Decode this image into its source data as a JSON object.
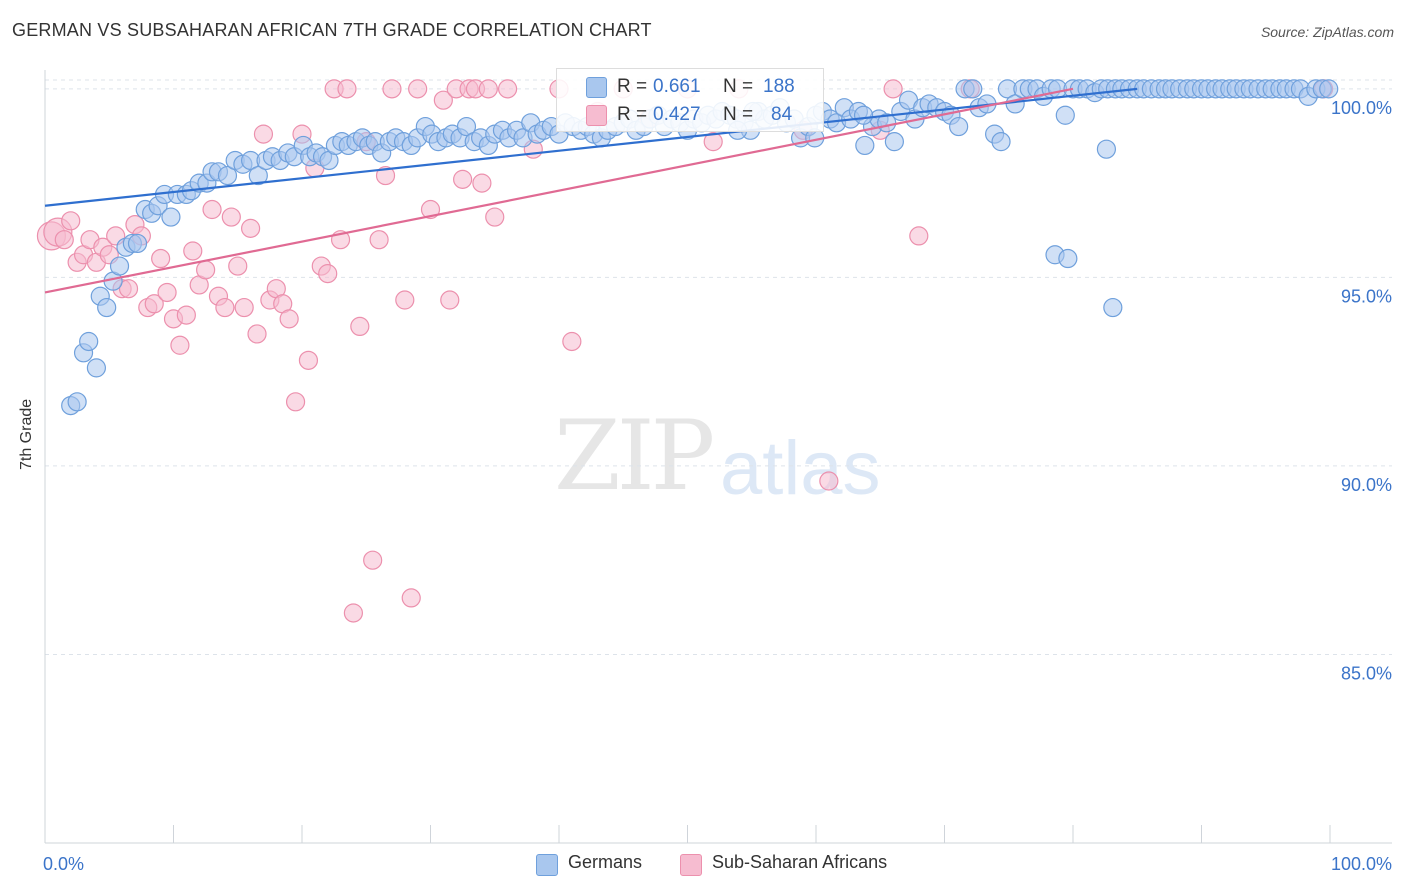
{
  "title": "GERMAN VS SUBSAHARAN AFRICAN 7TH GRADE CORRELATION CHART",
  "source": "Source: ZipAtlas.com",
  "watermark": {
    "zip": "ZIP",
    "atlas": "atlas"
  },
  "legend": {
    "r_label": "R =",
    "n_label": "N =",
    "german_r": "0.661",
    "german_n": "188",
    "african_r": "0.427",
    "african_n": "84"
  },
  "colors": {
    "german_fill": "#a9c7ee",
    "german_stroke": "#6fa0dc",
    "german_line": "#2f6fcf",
    "african_fill": "#f6bcd0",
    "african_stroke": "#ec90ad",
    "african_line": "#e06a93",
    "tick_text": "#3b74c9",
    "grid": "#dde3ea"
  },
  "chart_data": {
    "type": "scatter",
    "title": "GERMAN VS SUBSAHARAN AFRICAN 7TH GRADE CORRELATION CHART",
    "xlabel": "",
    "ylabel": "7th Grade",
    "xlim": [
      0,
      100
    ],
    "ylim": [
      80,
      100.5
    ],
    "x_ticks": [
      "0.0%",
      "100.0%"
    ],
    "y_ticks": [
      {
        "value": 85,
        "label": "85.0%"
      },
      {
        "value": 90,
        "label": "90.0%"
      },
      {
        "value": 95,
        "label": "95.0%"
      },
      {
        "value": 100,
        "label": "100.0%"
      }
    ],
    "grid": true,
    "legend_position": "bottom",
    "series": [
      {
        "name": "Germans",
        "r": 0.661,
        "n": 188,
        "trend": {
          "x": [
            0,
            85
          ],
          "y": [
            96.9,
            100.0
          ]
        },
        "points": [
          [
            2,
            91.6
          ],
          [
            2.5,
            91.7
          ],
          [
            3,
            93
          ],
          [
            3.4,
            93.3
          ],
          [
            4,
            92.6
          ],
          [
            4.3,
            94.5
          ],
          [
            4.8,
            94.2
          ],
          [
            5.3,
            94.9
          ],
          [
            5.8,
            95.3
          ],
          [
            6.3,
            95.8
          ],
          [
            6.8,
            95.9
          ],
          [
            7.2,
            95.9
          ],
          [
            7.8,
            96.8
          ],
          [
            8.3,
            96.7
          ],
          [
            8.8,
            96.9
          ],
          [
            9.3,
            97.2
          ],
          [
            9.8,
            96.6
          ],
          [
            10.3,
            97.2
          ],
          [
            11,
            97.2
          ],
          [
            11.4,
            97.3
          ],
          [
            12,
            97.5
          ],
          [
            12.6,
            97.5
          ],
          [
            13,
            97.8
          ],
          [
            13.5,
            97.8
          ],
          [
            14.2,
            97.7
          ],
          [
            14.8,
            98.1
          ],
          [
            15.4,
            98
          ],
          [
            16,
            98.1
          ],
          [
            16.6,
            97.7
          ],
          [
            17.2,
            98.1
          ],
          [
            17.7,
            98.2
          ],
          [
            18.3,
            98.1
          ],
          [
            18.9,
            98.3
          ],
          [
            19.4,
            98.2
          ],
          [
            20.1,
            98.5
          ],
          [
            20.6,
            98.2
          ],
          [
            21.1,
            98.3
          ],
          [
            21.6,
            98.2
          ],
          [
            22.1,
            98.1
          ],
          [
            22.6,
            98.5
          ],
          [
            23.1,
            98.6
          ],
          [
            23.6,
            98.5
          ],
          [
            24.2,
            98.6
          ],
          [
            24.7,
            98.7
          ],
          [
            25.2,
            98.5
          ],
          [
            25.7,
            98.6
          ],
          [
            26.2,
            98.3
          ],
          [
            26.8,
            98.6
          ],
          [
            27.3,
            98.7
          ],
          [
            27.9,
            98.6
          ],
          [
            28.5,
            98.5
          ],
          [
            29,
            98.7
          ],
          [
            29.6,
            99
          ],
          [
            30.1,
            98.8
          ],
          [
            30.6,
            98.6
          ],
          [
            31.2,
            98.7
          ],
          [
            31.7,
            98.8
          ],
          [
            32.3,
            98.7
          ],
          [
            32.8,
            99
          ],
          [
            33.4,
            98.6
          ],
          [
            33.9,
            98.7
          ],
          [
            34.5,
            98.5
          ],
          [
            35,
            98.8
          ],
          [
            35.6,
            98.9
          ],
          [
            36.1,
            98.7
          ],
          [
            36.7,
            98.9
          ],
          [
            37.2,
            98.7
          ],
          [
            37.8,
            99.1
          ],
          [
            38.3,
            98.8
          ],
          [
            38.8,
            98.9
          ],
          [
            39.4,
            99
          ],
          [
            40,
            98.8
          ],
          [
            40.5,
            99.1
          ],
          [
            41.1,
            99
          ],
          [
            41.7,
            98.9
          ],
          [
            42.2,
            99
          ],
          [
            42.7,
            98.8
          ],
          [
            43.3,
            98.7
          ],
          [
            43.8,
            98.9
          ],
          [
            44.4,
            99
          ],
          [
            45,
            99.1
          ],
          [
            45.5,
            99.2
          ],
          [
            46,
            98.9
          ],
          [
            46.6,
            99
          ],
          [
            47.1,
            99.2
          ],
          [
            47.7,
            99.3
          ],
          [
            48.2,
            99
          ],
          [
            48.8,
            99.2
          ],
          [
            49.4,
            99.1
          ],
          [
            50,
            98.9
          ],
          [
            50.5,
            99.2
          ],
          [
            51.1,
            99.1
          ],
          [
            51.6,
            99.3
          ],
          [
            52.2,
            99.2
          ],
          [
            52.7,
            99.4
          ],
          [
            53.3,
            99.3
          ],
          [
            53.8,
            99.2
          ],
          [
            54.4,
            99.1
          ],
          [
            54.9,
            98.9
          ],
          [
            55.5,
            99.4
          ],
          [
            56,
            99.2
          ],
          [
            56.6,
            99.3
          ],
          [
            57.2,
            99.5
          ],
          [
            57.7,
            99.1
          ],
          [
            58.3,
            99.2
          ],
          [
            58.8,
            98.7
          ],
          [
            59.4,
            99
          ],
          [
            60,
            99.3
          ],
          [
            60.5,
            99.4
          ],
          [
            61.1,
            99.2
          ],
          [
            61.6,
            99.1
          ],
          [
            62.2,
            99.5
          ],
          [
            62.7,
            99.2
          ],
          [
            63.3,
            99.4
          ],
          [
            63.8,
            98.5
          ],
          [
            64.4,
            99
          ],
          [
            64.9,
            99.2
          ],
          [
            65.5,
            99.1
          ],
          [
            66.1,
            98.6
          ],
          [
            66.6,
            99.4
          ],
          [
            67.2,
            99.7
          ],
          [
            67.7,
            99.2
          ],
          [
            68.3,
            99.5
          ],
          [
            68.8,
            99.6
          ],
          [
            69.4,
            99.5
          ],
          [
            70,
            99.4
          ],
          [
            70.5,
            99.3
          ],
          [
            71.1,
            99
          ],
          [
            71.6,
            100
          ],
          [
            72.2,
            100
          ],
          [
            72.7,
            99.5
          ],
          [
            73.3,
            99.6
          ],
          [
            73.9,
            98.8
          ],
          [
            74.4,
            98.6
          ],
          [
            74.9,
            100
          ],
          [
            75.5,
            99.6
          ],
          [
            76.1,
            100
          ],
          [
            76.6,
            100
          ],
          [
            77.2,
            100
          ],
          [
            77.7,
            99.8
          ],
          [
            78.3,
            100
          ],
          [
            78.8,
            100
          ],
          [
            79.4,
            99.3
          ],
          [
            80,
            100
          ],
          [
            80.5,
            100
          ],
          [
            81.1,
            100
          ],
          [
            81.7,
            99.9
          ],
          [
            82.2,
            100
          ],
          [
            82.7,
            100
          ],
          [
            83.3,
            100
          ],
          [
            83.8,
            100
          ],
          [
            84.4,
            100
          ],
          [
            85,
            100
          ],
          [
            85.5,
            100
          ],
          [
            86.1,
            100
          ],
          [
            86.7,
            100
          ],
          [
            87.2,
            100
          ],
          [
            87.7,
            100
          ],
          [
            88.3,
            100
          ],
          [
            88.9,
            100
          ],
          [
            89.4,
            100
          ],
          [
            90,
            100
          ],
          [
            90.5,
            100
          ],
          [
            91.1,
            100
          ],
          [
            91.6,
            100
          ],
          [
            92.2,
            100
          ],
          [
            92.7,
            100
          ],
          [
            93.3,
            100
          ],
          [
            93.8,
            100
          ],
          [
            94.4,
            100
          ],
          [
            95,
            100
          ],
          [
            95.5,
            100
          ],
          [
            96.1,
            100
          ],
          [
            96.6,
            100
          ],
          [
            97.2,
            100
          ],
          [
            97.7,
            100
          ],
          [
            98.3,
            99.8
          ],
          [
            98.9,
            100
          ],
          [
            99.4,
            100
          ],
          [
            99.9,
            100
          ],
          [
            78.6,
            95.6
          ],
          [
            79.6,
            95.5
          ],
          [
            83.1,
            94.2
          ],
          [
            82.6,
            98.4
          ],
          [
            63.7,
            99.3
          ],
          [
            59.9,
            98.7
          ],
          [
            55.1,
            99.4
          ],
          [
            53.9,
            98.9
          ]
        ]
      },
      {
        "name": "Sub-Saharan Africans",
        "r": 0.427,
        "n": 84,
        "trend": {
          "x": [
            0,
            80
          ],
          "y": [
            94.6,
            100.0
          ]
        },
        "points": [
          [
            0.5,
            96.1
          ],
          [
            1,
            96.2
          ],
          [
            1.5,
            96
          ],
          [
            2,
            96.5
          ],
          [
            2.5,
            95.4
          ],
          [
            3,
            95.6
          ],
          [
            3.5,
            96
          ],
          [
            4,
            95.4
          ],
          [
            4.5,
            95.8
          ],
          [
            5,
            95.6
          ],
          [
            5.5,
            96.1
          ],
          [
            6,
            94.7
          ],
          [
            6.5,
            94.7
          ],
          [
            7,
            96.4
          ],
          [
            7.5,
            96.1
          ],
          [
            8,
            94.2
          ],
          [
            8.5,
            94.3
          ],
          [
            9,
            95.5
          ],
          [
            9.5,
            94.6
          ],
          [
            10,
            93.9
          ],
          [
            10.5,
            93.2
          ],
          [
            11,
            94
          ],
          [
            11.5,
            95.7
          ],
          [
            12,
            94.8
          ],
          [
            12.5,
            95.2
          ],
          [
            13,
            96.8
          ],
          [
            13.5,
            94.5
          ],
          [
            14,
            94.2
          ],
          [
            14.5,
            96.6
          ],
          [
            15,
            95.3
          ],
          [
            15.5,
            94.2
          ],
          [
            16,
            96.3
          ],
          [
            16.5,
            93.5
          ],
          [
            17,
            98.8
          ],
          [
            17.5,
            94.4
          ],
          [
            18,
            94.7
          ],
          [
            18.5,
            94.3
          ],
          [
            19,
            93.9
          ],
          [
            19.5,
            91.7
          ],
          [
            20,
            98.8
          ],
          [
            20.5,
            92.8
          ],
          [
            21,
            97.9
          ],
          [
            21.5,
            95.3
          ],
          [
            22,
            95.1
          ],
          [
            22.5,
            100
          ],
          [
            23,
            96
          ],
          [
            23.5,
            100
          ],
          [
            24,
            86.1
          ],
          [
            24.5,
            93.7
          ],
          [
            25,
            98.6
          ],
          [
            25.5,
            87.5
          ],
          [
            26,
            96
          ],
          [
            26.5,
            97.7
          ],
          [
            27,
            100
          ],
          [
            28,
            94.4
          ],
          [
            28.5,
            86.5
          ],
          [
            29,
            100
          ],
          [
            30,
            96.8
          ],
          [
            31,
            99.7
          ],
          [
            31.5,
            94.4
          ],
          [
            32,
            100
          ],
          [
            32.5,
            97.6
          ],
          [
            33,
            100
          ],
          [
            33.5,
            100
          ],
          [
            34,
            97.5
          ],
          [
            34.5,
            100
          ],
          [
            35,
            96.6
          ],
          [
            36,
            100
          ],
          [
            38,
            98.4
          ],
          [
            40,
            100
          ],
          [
            41,
            93.3
          ],
          [
            43,
            99.4
          ],
          [
            45,
            100
          ],
          [
            47,
            99.2
          ],
          [
            50,
            100
          ],
          [
            52,
            98.6
          ],
          [
            54,
            100
          ],
          [
            59,
            98.9
          ],
          [
            61,
            89.6
          ],
          [
            65,
            98.9
          ],
          [
            66,
            100
          ],
          [
            68,
            96.1
          ],
          [
            72,
            100
          ],
          [
            99.5,
            100
          ]
        ]
      }
    ]
  }
}
